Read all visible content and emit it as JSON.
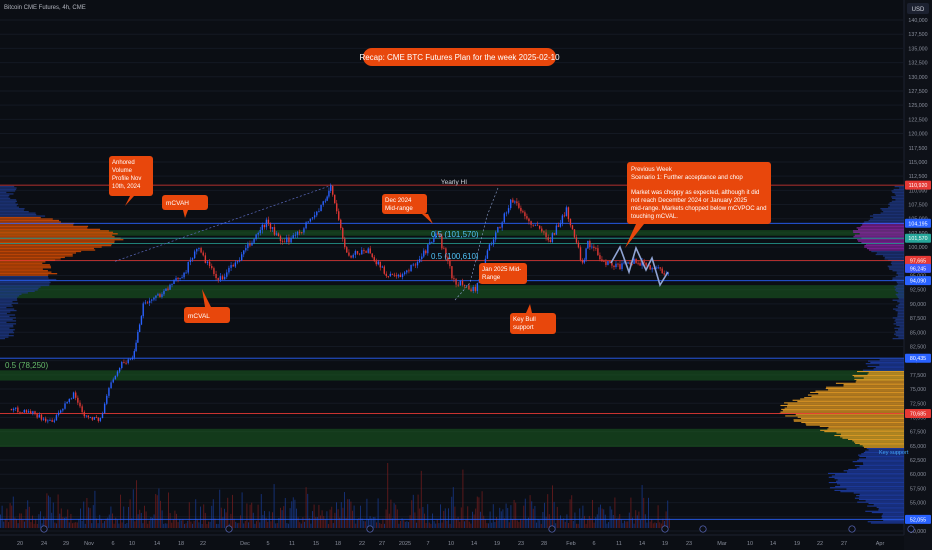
{
  "header": {
    "symbol_label": "Bitcoin CME Futures, 4h, CME"
  },
  "price_scale": {
    "currency_label": "USD",
    "ticks": [
      "140,000",
      "137,500",
      "135,000",
      "132,500",
      "130,000",
      "127,500",
      "125,000",
      "122,500",
      "120,000",
      "117,500",
      "115,000",
      "112,500",
      "110,000",
      "107,500",
      "105,000",
      "102,500",
      "100,000",
      "97,500",
      "95,000",
      "92,500",
      "90,000",
      "87,500",
      "85,000",
      "82,500",
      "80,000",
      "77,500",
      "75,000",
      "72,500",
      "70,000",
      "67,500",
      "65,000",
      "62,500",
      "60,000",
      "57,500",
      "55,000",
      "52,500",
      "50,000"
    ],
    "tags": [
      {
        "label": "110,920",
        "value": 110920,
        "color": "#e53935"
      },
      {
        "label": "104,195",
        "value": 104195,
        "color": "#2962ff"
      },
      {
        "label": "101,570",
        "value": 101570,
        "color": "#26a69a"
      },
      {
        "label": "97,665",
        "value": 97665,
        "color": "#e53935"
      },
      {
        "label": "96,245",
        "value": 96245,
        "color": "#3d5afe"
      },
      {
        "label": "94,090",
        "value": 94090,
        "color": "#2962ff"
      },
      {
        "label": "80,435",
        "value": 80435,
        "color": "#2962ff"
      },
      {
        "label": "70,685",
        "value": 70685,
        "color": "#e53935"
      },
      {
        "label": "52,055",
        "value": 52055,
        "color": "#2962ff"
      }
    ]
  },
  "time_axis": {
    "labels": [
      "20",
      "24",
      "29",
      "Nov",
      "6",
      "10",
      "14",
      "18",
      "22",
      "Dec",
      "5",
      "11",
      "15",
      "18",
      "22",
      "27",
      "2025",
      "7",
      "10",
      "14",
      "19",
      "23",
      "28",
      "Feb",
      "6",
      "11",
      "14",
      "19",
      "23",
      "Mar",
      "10",
      "14",
      "19",
      "22",
      "27",
      "Apr"
    ]
  },
  "title_banner": "Recap: CME BTC Futures Plan for the week 2025-02-10",
  "annotations": {
    "anchored_vp": "Anhored Volume Profile Nov 10th, 2024",
    "mcvah": "mCVAH",
    "mcval": "mCVAL",
    "dec_mid": "Dec 2024 Mid-range",
    "jan_mid": "Jan 2025 Mid-Range",
    "key_bull": "Key Bull support",
    "previous_week_title": "Previous Week",
    "previous_week_scenario": "Scenario 1: Further acceptance and chop",
    "previous_week_body": "Market was choppy as expected, although it did not reach December 2024 or January 2025 mid-range. Markets chopped below mCVPOC and touching mCVAL.",
    "yearly_hi": "Yearly HI",
    "fib_101570": "0.5 (101,570)",
    "fib_100610": "0.5 (100,610)",
    "fib_78250": "0.5 (78,250)",
    "key_support": "Key support"
  },
  "colors": {
    "background": "#0b0e14",
    "up": "#2962ff",
    "down": "#e53935",
    "annotation": "#e8470c",
    "profile_upper": "#e65100",
    "profile_lower": "#f9a825",
    "zone_green": "#1b5e20"
  },
  "chart_data": {
    "type": "candlestick",
    "timeframe": "4h",
    "y_axis": {
      "min": 50000,
      "max": 142500,
      "unit": "USD",
      "log_scale": false
    },
    "levels": [
      {
        "value": 110920,
        "color": "red"
      },
      {
        "value": 104195,
        "color": "blue"
      },
      {
        "value": 101570,
        "color": "teal"
      },
      {
        "value": 100610,
        "color": "teal"
      },
      {
        "value": 97665,
        "color": "red"
      },
      {
        "value": 94090,
        "color": "blue"
      },
      {
        "value": 80435,
        "color": "blue"
      },
      {
        "value": 70685,
        "color": "red"
      },
      {
        "value": 52055,
        "color": "blue"
      }
    ],
    "zones": [
      {
        "from": 91000,
        "to": 93300,
        "color": "green"
      },
      {
        "from": 76500,
        "to": 78300,
        "color": "green"
      },
      {
        "from": 64800,
        "to": 68000,
        "color": "green"
      },
      {
        "from": 102000,
        "to": 103000,
        "color": "green"
      }
    ],
    "price_path": [
      {
        "date": "2024-10-18",
        "close": 71500
      },
      {
        "date": "2024-10-22",
        "close": 71000
      },
      {
        "date": "2024-10-26",
        "close": 69000
      },
      {
        "date": "2024-10-30",
        "close": 74200
      },
      {
        "date": "2024-11-01",
        "close": 70500
      },
      {
        "date": "2024-11-04",
        "close": 69500
      },
      {
        "date": "2024-11-06",
        "close": 76500
      },
      {
        "date": "2024-11-08",
        "close": 79500
      },
      {
        "date": "2024-11-10",
        "close": 80500
      },
      {
        "date": "2024-11-11",
        "close": 85000
      },
      {
        "date": "2024-11-12",
        "close": 90000
      },
      {
        "date": "2024-11-14",
        "close": 91000
      },
      {
        "date": "2024-11-17",
        "close": 93000
      },
      {
        "date": "2024-11-20",
        "close": 96000
      },
      {
        "date": "2024-11-22",
        "close": 100000
      },
      {
        "date": "2024-11-26",
        "close": 94000
      },
      {
        "date": "2024-11-30",
        "close": 98000
      },
      {
        "date": "2024-12-05",
        "close": 104500
      },
      {
        "date": "2024-12-08",
        "close": 100500
      },
      {
        "date": "2024-12-12",
        "close": 103500
      },
      {
        "date": "2024-12-16",
        "close": 108000
      },
      {
        "date": "2024-12-17",
        "close": 110920
      },
      {
        "date": "2024-12-20",
        "close": 98500
      },
      {
        "date": "2024-12-24",
        "close": 99500
      },
      {
        "date": "2024-12-27",
        "close": 95500
      },
      {
        "date": "2024-12-30",
        "close": 94500
      },
      {
        "date": "2025-01-03",
        "close": 98500
      },
      {
        "date": "2025-01-06",
        "close": 102500
      },
      {
        "date": "2025-01-09",
        "close": 94000
      },
      {
        "date": "2025-01-13",
        "close": 92500
      },
      {
        "date": "2025-01-16",
        "close": 101000
      },
      {
        "date": "2025-01-20",
        "close": 108500
      },
      {
        "date": "2025-01-23",
        "close": 104500
      },
      {
        "date": "2025-01-27",
        "close": 101500
      },
      {
        "date": "2025-01-30",
        "close": 106500
      },
      {
        "date": "2025-02-02",
        "close": 97000
      },
      {
        "date": "2025-02-03",
        "close": 101000
      },
      {
        "date": "2025-02-06",
        "close": 97500
      },
      {
        "date": "2025-02-09",
        "close": 96500
      },
      {
        "date": "2025-02-12",
        "close": 97500
      },
      {
        "date": "2025-02-15",
        "close": 96500
      },
      {
        "date": "2025-02-18",
        "close": 95500
      }
    ]
  }
}
